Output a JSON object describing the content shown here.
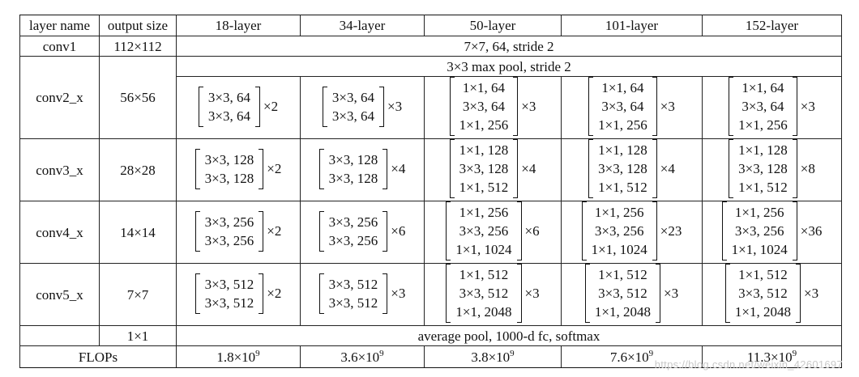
{
  "table": {
    "headers": [
      "layer name",
      "output size",
      "18-layer",
      "34-layer",
      "50-layer",
      "101-layer",
      "152-layer"
    ],
    "conv1": {
      "name": "conv1",
      "size": "112×112",
      "spec": "7×7, 64, stride 2"
    },
    "pool": {
      "spec": "3×3 max pool, stride 2"
    },
    "stages": [
      {
        "name": "conv2_x",
        "size": "56×56",
        "blocks": [
          {
            "lines": [
              "3×3, 64",
              "3×3, 64"
            ],
            "mult": "×2"
          },
          {
            "lines": [
              "3×3, 64",
              "3×3, 64"
            ],
            "mult": "×3"
          },
          {
            "lines": [
              "1×1, 64",
              "3×3, 64",
              "1×1, 256"
            ],
            "mult": "×3"
          },
          {
            "lines": [
              "1×1, 64",
              "3×3, 64",
              "1×1, 256"
            ],
            "mult": "×3"
          },
          {
            "lines": [
              "1×1, 64",
              "3×3, 64",
              "1×1, 256"
            ],
            "mult": "×3"
          }
        ]
      },
      {
        "name": "conv3_x",
        "size": "28×28",
        "blocks": [
          {
            "lines": [
              "3×3, 128",
              "3×3, 128"
            ],
            "mult": "×2"
          },
          {
            "lines": [
              "3×3, 128",
              "3×3, 128"
            ],
            "mult": "×4"
          },
          {
            "lines": [
              "1×1, 128",
              "3×3, 128",
              "1×1, 512"
            ],
            "mult": "×4"
          },
          {
            "lines": [
              "1×1, 128",
              "3×3, 128",
              "1×1, 512"
            ],
            "mult": "×4"
          },
          {
            "lines": [
              "1×1, 128",
              "3×3, 128",
              "1×1, 512"
            ],
            "mult": "×8"
          }
        ]
      },
      {
        "name": "conv4_x",
        "size": "14×14",
        "blocks": [
          {
            "lines": [
              "3×3, 256",
              "3×3, 256"
            ],
            "mult": "×2"
          },
          {
            "lines": [
              "3×3, 256",
              "3×3, 256"
            ],
            "mult": "×6"
          },
          {
            "lines": [
              "1×1, 256",
              "3×3, 256",
              "1×1, 1024"
            ],
            "mult": "×6"
          },
          {
            "lines": [
              "1×1, 256",
              "3×3, 256",
              "1×1, 1024"
            ],
            "mult": "×23"
          },
          {
            "lines": [
              "1×1, 256",
              "3×3, 256",
              "1×1, 1024"
            ],
            "mult": "×36"
          }
        ]
      },
      {
        "name": "conv5_x",
        "size": "7×7",
        "blocks": [
          {
            "lines": [
              "3×3, 512",
              "3×3, 512"
            ],
            "mult": "×2"
          },
          {
            "lines": [
              "3×3, 512",
              "3×3, 512"
            ],
            "mult": "×3"
          },
          {
            "lines": [
              "1×1, 512",
              "3×3, 512",
              "1×1, 2048"
            ],
            "mult": "×3"
          },
          {
            "lines": [
              "1×1, 512",
              "3×3, 512",
              "1×1, 2048"
            ],
            "mult": "×3"
          },
          {
            "lines": [
              "1×1, 512",
              "3×3, 512",
              "1×1, 2048"
            ],
            "mult": "×3"
          }
        ]
      }
    ],
    "final": {
      "size": "1×1",
      "spec": "average pool, 1000-d fc, softmax"
    },
    "flops": {
      "label": "FLOPs",
      "values": [
        {
          "mantissa": "1.8×10",
          "exp": "9"
        },
        {
          "mantissa": "3.6×10",
          "exp": "9"
        },
        {
          "mantissa": "3.8×10",
          "exp": "9"
        },
        {
          "mantissa": "7.6×10",
          "exp": "9"
        },
        {
          "mantissa": "11.3×10",
          "exp": "9"
        }
      ]
    }
  },
  "watermark": "https://blog.csdn.net/weixin_42601697"
}
